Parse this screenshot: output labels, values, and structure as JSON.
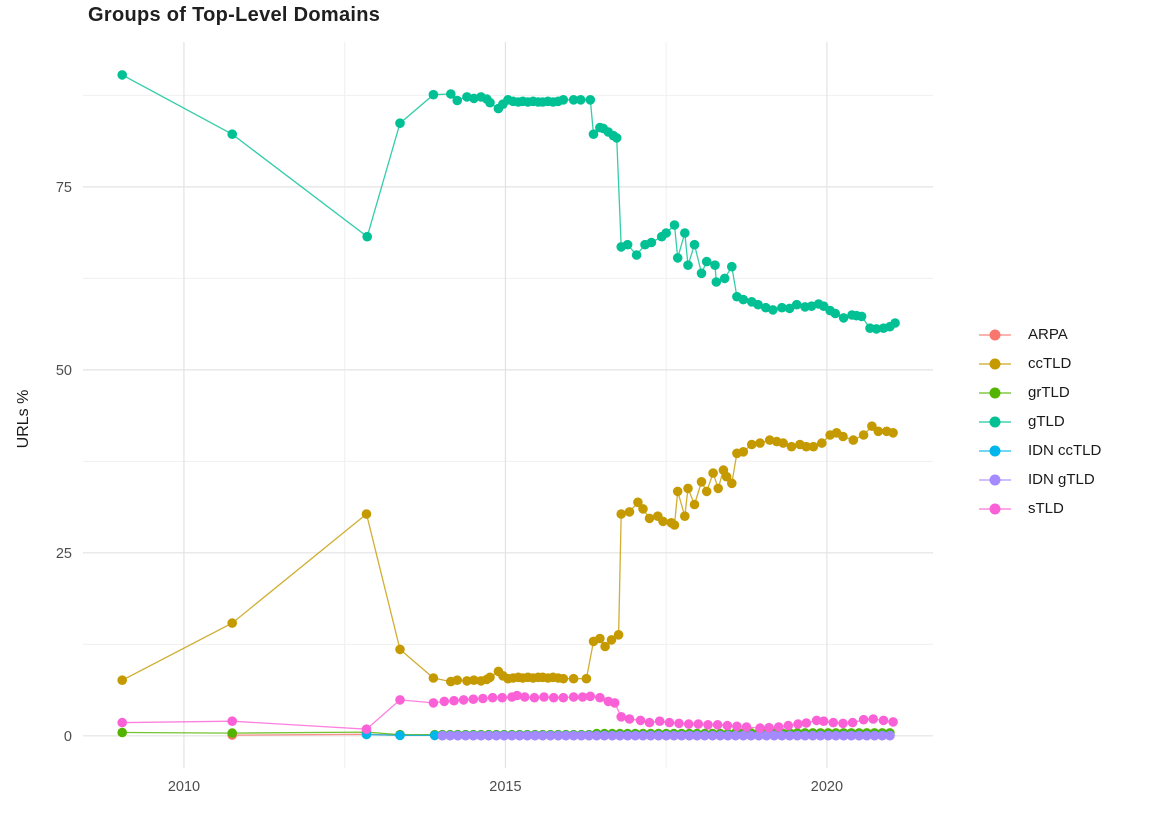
{
  "chart_data": {
    "type": "line",
    "title": "Groups of Top-Level Domains",
    "x_axis": {
      "ticks": [
        2010,
        2015,
        2020
      ],
      "minor": [
        2012.5,
        2017.5
      ],
      "domain": [
        2008.43,
        2021.65
      ]
    },
    "y_axis": {
      "label": "URLs %",
      "ticks": [
        0,
        25,
        50,
        75
      ],
      "minor": [
        12.5,
        37.5,
        62.5,
        87.5
      ],
      "domain": [
        -4.4,
        94.8
      ]
    },
    "grid": "on",
    "legend_position": "right",
    "colors": {
      "major_grid": "#e3e3e3",
      "minor_grid": "#f0f0f0",
      "axis_text": "#4d4d4d"
    },
    "series": [
      {
        "name": "ARPA",
        "color": "#F8766D",
        "points": [
          [
            2010.75,
            0.1
          ],
          [
            2012.84,
            0.2
          ],
          [
            2013.36,
            0.08
          ]
        ],
        "runs": [
          {
            "from": 2013.9,
            "to": 2021.08,
            "step": 0.12,
            "value": 0.05
          }
        ]
      },
      {
        "name": "ccTLD",
        "color": "#C49A00",
        "points": [
          [
            2009.04,
            7.6
          ],
          [
            2010.75,
            15.4
          ],
          [
            2012.84,
            30.3
          ],
          [
            2013.36,
            11.8
          ],
          [
            2013.88,
            7.9
          ],
          [
            2014.15,
            7.4
          ],
          [
            2014.25,
            7.6
          ],
          [
            2014.4,
            7.5
          ],
          [
            2014.51,
            7.6
          ],
          [
            2014.62,
            7.5
          ],
          [
            2014.71,
            7.7
          ],
          [
            2014.76,
            8.0
          ],
          [
            2014.89,
            8.8
          ],
          [
            2014.96,
            8.2
          ],
          [
            2015.04,
            7.8
          ],
          [
            2015.12,
            7.9
          ],
          [
            2015.2,
            8.0
          ],
          [
            2015.27,
            7.9
          ],
          [
            2015.35,
            8.0
          ],
          [
            2015.43,
            7.9
          ],
          [
            2015.51,
            8.0
          ],
          [
            2015.58,
            8.0
          ],
          [
            2015.66,
            7.9
          ],
          [
            2015.74,
            8.0
          ],
          [
            2015.82,
            7.9
          ],
          [
            2015.9,
            7.8
          ],
          [
            2016.06,
            7.8
          ],
          [
            2016.26,
            7.8
          ],
          [
            2016.37,
            12.9
          ],
          [
            2016.47,
            13.3
          ],
          [
            2016.55,
            12.2
          ],
          [
            2016.65,
            13.1
          ],
          [
            2016.76,
            13.8
          ],
          [
            2016.8,
            30.3
          ],
          [
            2016.93,
            30.6
          ],
          [
            2017.06,
            31.9
          ],
          [
            2017.14,
            31.0
          ],
          [
            2017.24,
            29.7
          ],
          [
            2017.37,
            30.0
          ],
          [
            2017.45,
            29.3
          ],
          [
            2017.58,
            29.1
          ],
          [
            2017.63,
            28.8
          ],
          [
            2017.68,
            33.4
          ],
          [
            2017.79,
            30.0
          ],
          [
            2017.84,
            33.8
          ],
          [
            2017.94,
            31.6
          ],
          [
            2018.05,
            34.7
          ],
          [
            2018.13,
            33.4
          ],
          [
            2018.23,
            35.9
          ],
          [
            2018.31,
            33.8
          ],
          [
            2018.39,
            36.3
          ],
          [
            2018.44,
            35.4
          ],
          [
            2018.52,
            34.5
          ],
          [
            2018.6,
            38.6
          ],
          [
            2018.7,
            38.8
          ],
          [
            2018.83,
            39.8
          ],
          [
            2018.96,
            40.0
          ],
          [
            2019.11,
            40.4
          ],
          [
            2019.22,
            40.2
          ],
          [
            2019.32,
            40.0
          ],
          [
            2019.45,
            39.5
          ],
          [
            2019.58,
            39.8
          ],
          [
            2019.68,
            39.5
          ],
          [
            2019.79,
            39.5
          ],
          [
            2019.92,
            40.0
          ],
          [
            2020.05,
            41.1
          ],
          [
            2020.15,
            41.4
          ],
          [
            2020.25,
            40.9
          ],
          [
            2020.41,
            40.4
          ],
          [
            2020.57,
            41.1
          ],
          [
            2020.7,
            42.3
          ],
          [
            2020.8,
            41.6
          ],
          [
            2020.93,
            41.6
          ],
          [
            2021.03,
            41.4
          ]
        ],
        "runs": []
      },
      {
        "name": "grTLD",
        "color": "#53B400",
        "points": [
          [
            2009.04,
            0.45
          ],
          [
            2010.75,
            0.37
          ],
          [
            2012.84,
            0.5
          ],
          [
            2013.36,
            0.15
          ]
        ],
        "runs": [
          {
            "from": 2013.9,
            "to": 2016.3,
            "step": 0.12,
            "value": 0.15
          },
          {
            "from": 2016.42,
            "to": 2018.46,
            "step": 0.12,
            "value": 0.3
          },
          {
            "from": 2018.58,
            "to": 2021.08,
            "step": 0.12,
            "value": 0.4
          }
        ]
      },
      {
        "name": "gTLD",
        "color": "#00C094",
        "points": [
          [
            2009.04,
            90.3
          ],
          [
            2010.75,
            82.2
          ],
          [
            2012.85,
            68.2
          ],
          [
            2013.36,
            83.7
          ],
          [
            2013.88,
            87.6
          ],
          [
            2014.15,
            87.7
          ],
          [
            2014.25,
            86.8
          ],
          [
            2014.4,
            87.3
          ],
          [
            2014.51,
            87.1
          ],
          [
            2014.62,
            87.3
          ],
          [
            2014.71,
            87.0
          ],
          [
            2014.76,
            86.5
          ],
          [
            2014.89,
            85.7
          ],
          [
            2014.96,
            86.3
          ],
          [
            2015.04,
            86.9
          ],
          [
            2015.12,
            86.7
          ],
          [
            2015.2,
            86.6
          ],
          [
            2015.27,
            86.7
          ],
          [
            2015.35,
            86.6
          ],
          [
            2015.43,
            86.7
          ],
          [
            2015.51,
            86.6
          ],
          [
            2015.58,
            86.6
          ],
          [
            2015.66,
            86.7
          ],
          [
            2015.74,
            86.6
          ],
          [
            2015.82,
            86.7
          ],
          [
            2015.9,
            86.9
          ],
          [
            2016.06,
            86.9
          ],
          [
            2016.17,
            86.9
          ],
          [
            2016.32,
            86.9
          ],
          [
            2016.37,
            82.2
          ],
          [
            2016.47,
            83.1
          ],
          [
            2016.52,
            83.0
          ],
          [
            2016.6,
            82.5
          ],
          [
            2016.68,
            82.0
          ],
          [
            2016.73,
            81.7
          ],
          [
            2016.8,
            66.8
          ],
          [
            2016.9,
            67.1
          ],
          [
            2017.04,
            65.7
          ],
          [
            2017.17,
            67.1
          ],
          [
            2017.27,
            67.4
          ],
          [
            2017.43,
            68.2
          ],
          [
            2017.5,
            68.7
          ],
          [
            2017.63,
            69.8
          ],
          [
            2017.68,
            65.3
          ],
          [
            2017.79,
            68.7
          ],
          [
            2017.84,
            64.3
          ],
          [
            2017.94,
            67.1
          ],
          [
            2018.05,
            63.2
          ],
          [
            2018.13,
            64.8
          ],
          [
            2018.26,
            64.3
          ],
          [
            2018.28,
            62.0
          ],
          [
            2018.41,
            62.5
          ],
          [
            2018.52,
            64.1
          ],
          [
            2018.6,
            60.0
          ],
          [
            2018.7,
            59.6
          ],
          [
            2018.83,
            59.3
          ],
          [
            2018.93,
            58.9
          ],
          [
            2019.05,
            58.5
          ],
          [
            2019.16,
            58.2
          ],
          [
            2019.3,
            58.5
          ],
          [
            2019.42,
            58.4
          ],
          [
            2019.53,
            58.9
          ],
          [
            2019.66,
            58.6
          ],
          [
            2019.76,
            58.7
          ],
          [
            2019.87,
            59.0
          ],
          [
            2019.95,
            58.7
          ],
          [
            2020.05,
            58.1
          ],
          [
            2020.13,
            57.7
          ],
          [
            2020.26,
            57.1
          ],
          [
            2020.39,
            57.5
          ],
          [
            2020.46,
            57.4
          ],
          [
            2020.54,
            57.3
          ],
          [
            2020.67,
            55.7
          ],
          [
            2020.77,
            55.6
          ],
          [
            2020.88,
            55.7
          ],
          [
            2020.98,
            55.9
          ],
          [
            2021.06,
            56.4
          ]
        ],
        "runs": []
      },
      {
        "name": "IDN ccTLD",
        "color": "#00B6EB",
        "points": [
          [
            2012.84,
            0.18
          ],
          [
            2013.36,
            0.06
          ]
        ],
        "runs": [
          {
            "from": 2013.9,
            "to": 2021.08,
            "step": 0.12,
            "value": 0.06
          }
        ]
      },
      {
        "name": "IDN gTLD",
        "color": "#A58AFF",
        "points": [],
        "runs": [
          {
            "from": 2014.02,
            "to": 2021.08,
            "step": 0.12,
            "value": 0.02
          }
        ]
      },
      {
        "name": "sTLD",
        "color": "#FB61D7",
        "points": [
          [
            2009.04,
            1.8
          ],
          [
            2010.75,
            2.0
          ],
          [
            2012.84,
            0.9
          ],
          [
            2013.36,
            4.9
          ],
          [
            2013.88,
            4.5
          ],
          [
            2014.05,
            4.7
          ],
          [
            2014.2,
            4.8
          ],
          [
            2014.35,
            4.9
          ],
          [
            2014.5,
            5.0
          ],
          [
            2014.65,
            5.1
          ],
          [
            2014.8,
            5.2
          ],
          [
            2014.95,
            5.2
          ],
          [
            2015.1,
            5.3
          ],
          [
            2015.18,
            5.5
          ],
          [
            2015.3,
            5.3
          ],
          [
            2015.45,
            5.2
          ],
          [
            2015.6,
            5.3
          ],
          [
            2015.75,
            5.2
          ],
          [
            2015.9,
            5.2
          ],
          [
            2016.06,
            5.3
          ],
          [
            2016.2,
            5.3
          ],
          [
            2016.32,
            5.4
          ],
          [
            2016.47,
            5.2
          ],
          [
            2016.6,
            4.7
          ],
          [
            2016.7,
            4.5
          ],
          [
            2016.8,
            2.6
          ],
          [
            2016.93,
            2.3
          ],
          [
            2017.1,
            2.1
          ],
          [
            2017.24,
            1.8
          ],
          [
            2017.4,
            2.0
          ],
          [
            2017.55,
            1.8
          ],
          [
            2017.7,
            1.7
          ],
          [
            2017.85,
            1.6
          ],
          [
            2018.0,
            1.6
          ],
          [
            2018.15,
            1.5
          ],
          [
            2018.3,
            1.5
          ],
          [
            2018.45,
            1.4
          ],
          [
            2018.6,
            1.3
          ],
          [
            2018.75,
            1.2
          ],
          [
            2018.96,
            1.05
          ],
          [
            2019.1,
            1.1
          ],
          [
            2019.25,
            1.2
          ],
          [
            2019.4,
            1.4
          ],
          [
            2019.55,
            1.6
          ],
          [
            2019.68,
            1.75
          ],
          [
            2019.84,
            2.1
          ],
          [
            2019.95,
            2.0
          ],
          [
            2020.1,
            1.8
          ],
          [
            2020.25,
            1.7
          ],
          [
            2020.4,
            1.8
          ],
          [
            2020.57,
            2.2
          ],
          [
            2020.72,
            2.3
          ],
          [
            2020.88,
            2.1
          ],
          [
            2021.03,
            1.9
          ]
        ],
        "runs": []
      }
    ]
  }
}
